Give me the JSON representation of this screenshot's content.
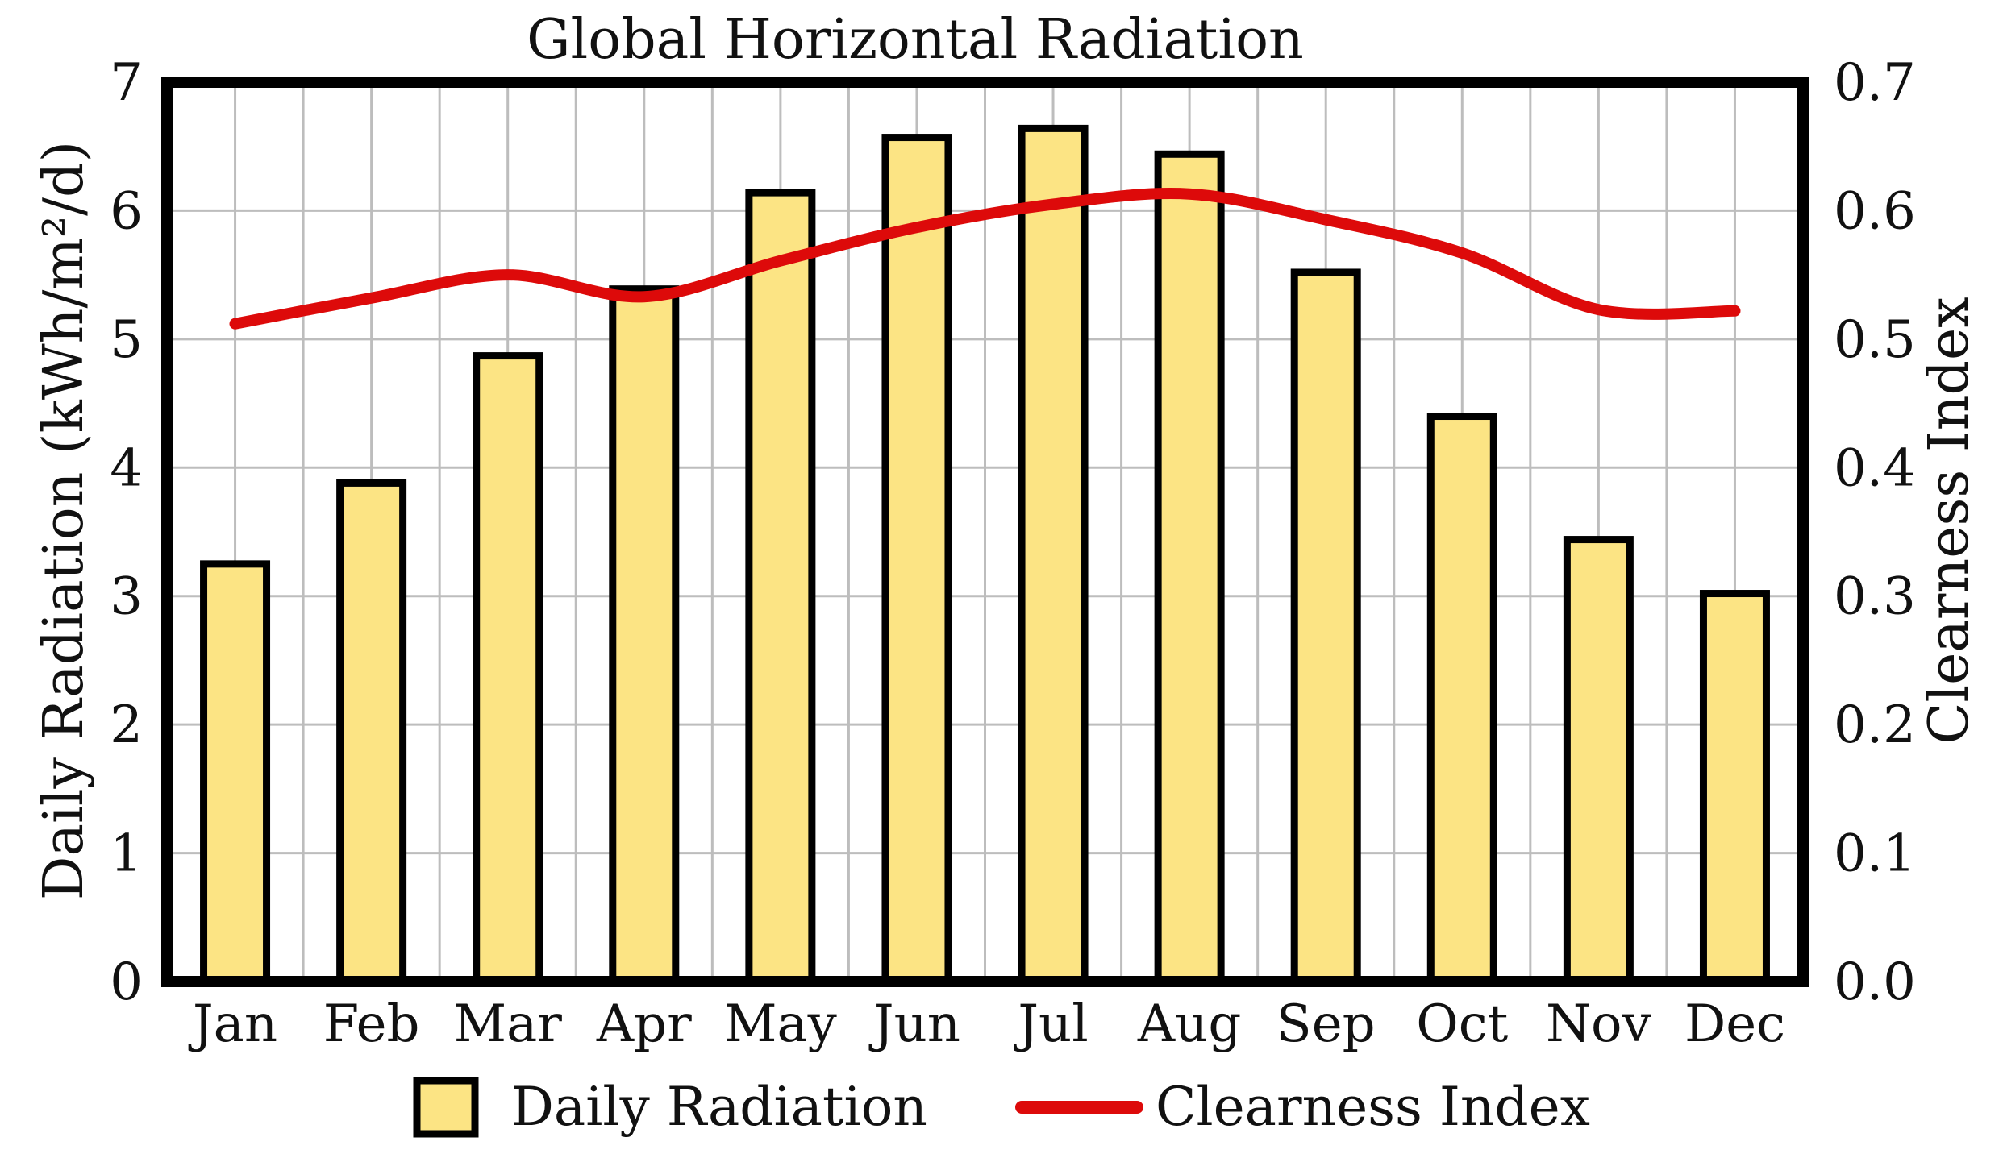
{
  "chart_data": {
    "type": "bar",
    "title": "Global Horizontal Radiation",
    "categories": [
      "Jan",
      "Feb",
      "Mar",
      "Apr",
      "May",
      "Jun",
      "Jul",
      "Aug",
      "Sep",
      "Oct",
      "Nov",
      "Dec"
    ],
    "series": [
      {
        "name": "Daily Radiation",
        "type": "bar",
        "axis": "left",
        "values": [
          3.25,
          3.88,
          4.87,
          5.39,
          6.14,
          6.57,
          6.64,
          6.44,
          5.52,
          4.4,
          3.44,
          3.02
        ]
      },
      {
        "name": "Clearness Index",
        "type": "line",
        "axis": "right",
        "values": [
          0.512,
          0.532,
          0.55,
          0.533,
          0.561,
          0.587,
          0.605,
          0.613,
          0.593,
          0.567,
          0.523,
          0.522
        ]
      }
    ],
    "ylabel": "Daily Radiation (kWh/m²/d)",
    "y2label": "Clearness Index",
    "ylim": [
      0,
      7
    ],
    "y2lim": [
      0.0,
      0.7
    ],
    "yticks": [
      "0",
      "1",
      "2",
      "3",
      "4",
      "5",
      "6",
      "7"
    ],
    "y2ticks": [
      "0.0",
      "0.1",
      "0.2",
      "0.3",
      "0.4",
      "0.5",
      "0.6",
      "0.7"
    ],
    "grid": true,
    "legend_position": "bottom-center",
    "colors": {
      "bar_fill": "#fce484",
      "bar_edge": "#000000",
      "line": "#dd0a0a",
      "grid": "#bdbdbd",
      "axis": "#000000"
    }
  }
}
